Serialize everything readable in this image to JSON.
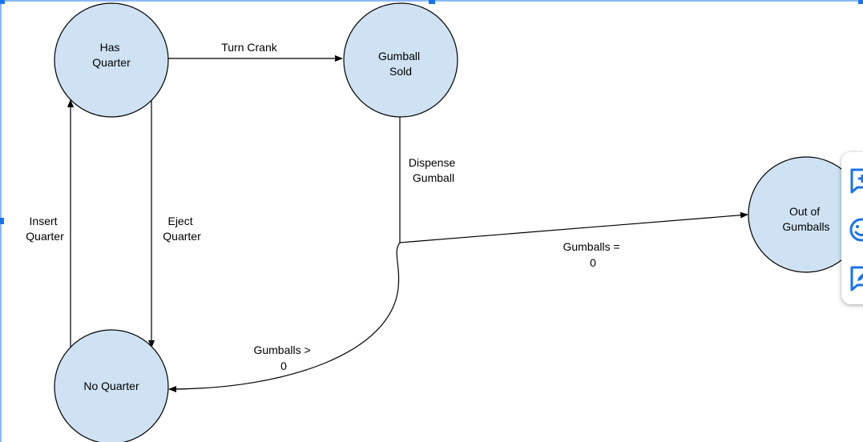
{
  "nodes": {
    "has_quarter": [
      "Has",
      "Quarter"
    ],
    "gumball_sold": [
      "Gumball",
      "Sold"
    ],
    "out_of_gumballs": [
      "Out of",
      "Gumballs"
    ],
    "no_quarter": [
      "No Quarter"
    ]
  },
  "edges": {
    "turn_crank": [
      "Turn Crank"
    ],
    "dispense_gumball": [
      "Dispense",
      "Gumball"
    ],
    "insert_quarter": [
      "Insert",
      "Quarter"
    ],
    "eject_quarter": [
      "Eject",
      "Quarter"
    ],
    "gumballs_zero": [
      "Gumballs =",
      "0"
    ],
    "gumballs_gt_zero": [
      "Gumballs >",
      "0"
    ]
  },
  "side_panel": {
    "icons": [
      "add-comment-icon",
      "emoji-icon",
      "suggest-edit-icon"
    ],
    "accent_color": "#1a73e8"
  },
  "colors": {
    "node_fill": "#cfe2f3",
    "stroke": "#000000",
    "selection": "#1a73e8"
  }
}
